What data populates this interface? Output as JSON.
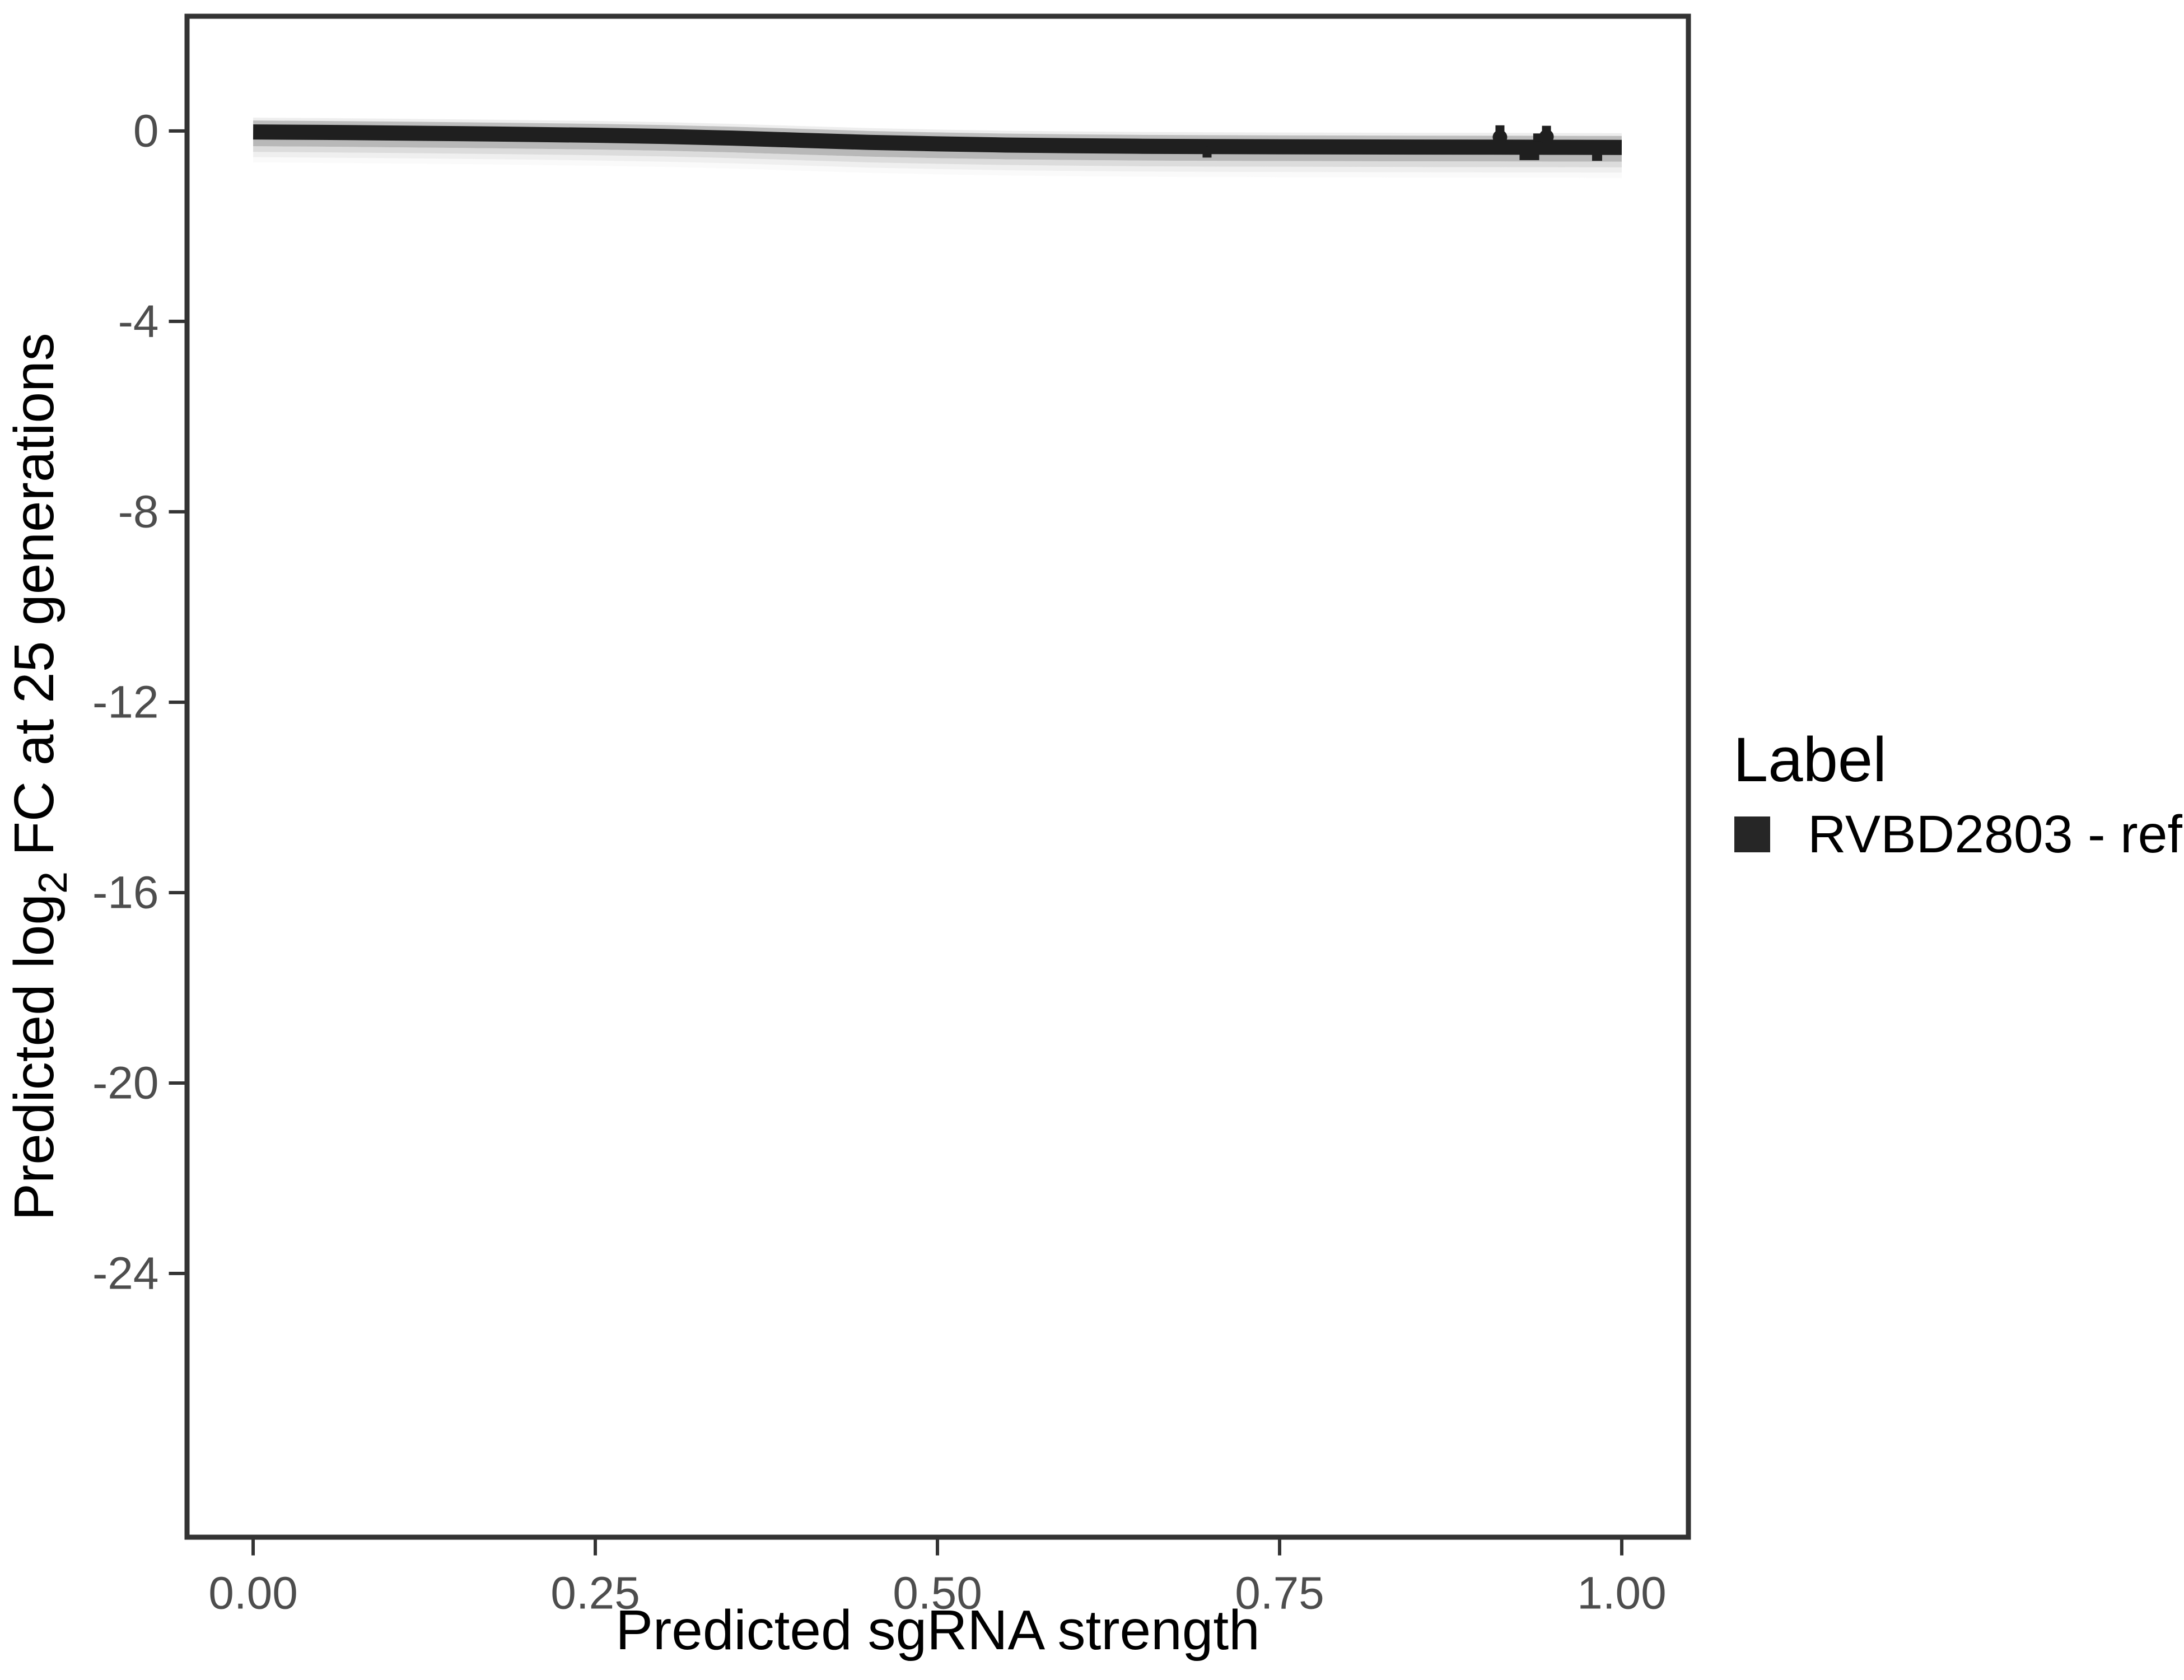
{
  "chart_data": {
    "type": "line",
    "title": "",
    "xlabel": "Predicted sgRNA strength",
    "ylabel": {
      "prefix": "Predicted log",
      "sub": "2",
      "suffix": " FC at 25 generations"
    },
    "x_ticks": [
      {
        "v": 0.0,
        "label": "0.00"
      },
      {
        "v": 0.25,
        "label": "0.25"
      },
      {
        "v": 0.5,
        "label": "0.50"
      },
      {
        "v": 0.75,
        "label": "0.75"
      },
      {
        "v": 1.0,
        "label": "1.00"
      }
    ],
    "y_ticks": [
      {
        "v": 0,
        "label": "0"
      },
      {
        "v": -4,
        "label": "-4"
      },
      {
        "v": -8,
        "label": "-8"
      },
      {
        "v": -12,
        "label": "-12"
      },
      {
        "v": -16,
        "label": "-16"
      },
      {
        "v": -20,
        "label": "-20"
      },
      {
        "v": -24,
        "label": "-24"
      }
    ],
    "axis_ranges": {
      "x": [
        -0.0483,
        1.0487
      ],
      "y": [
        -29.54,
        2.41
      ],
      "grid": "off"
    },
    "legend": {
      "position": "right",
      "title": "Label",
      "entries": [
        {
          "label": "RVBD2803 - ref",
          "key_shape": "square",
          "key_color": "#262626"
        }
      ]
    },
    "series": [
      {
        "name": "RVBD2803 - ref",
        "kind": "smooth_fit_line",
        "color": "#1f1f1f",
        "stroke_px": 27,
        "points": [
          [
            0.0,
            -0.02
          ],
          [
            0.05,
            -0.03
          ],
          [
            0.1,
            -0.042
          ],
          [
            0.15,
            -0.056
          ],
          [
            0.2,
            -0.072
          ],
          [
            0.25,
            -0.09
          ],
          [
            0.3,
            -0.115
          ],
          [
            0.35,
            -0.15
          ],
          [
            0.4,
            -0.195
          ],
          [
            0.45,
            -0.24
          ],
          [
            0.5,
            -0.27
          ],
          [
            0.55,
            -0.295
          ],
          [
            0.6,
            -0.31
          ],
          [
            0.65,
            -0.322
          ],
          [
            0.7,
            -0.328
          ],
          [
            0.75,
            -0.332
          ],
          [
            0.8,
            -0.335
          ],
          [
            0.85,
            -0.338
          ],
          [
            0.9,
            -0.34
          ],
          [
            0.95,
            -0.342
          ],
          [
            1.0,
            -0.345
          ]
        ]
      }
    ],
    "ribbon_bands": [
      {
        "top": 0.3,
        "bottom": 0.24,
        "color": "#d9d9d9",
        "opacity": 0.45
      },
      {
        "top": 0.24,
        "bottom": 0.15,
        "color": "#b3b3b3",
        "opacity": 0.85
      },
      {
        "top": -0.15,
        "bottom": -0.3,
        "color": "#ababab",
        "opacity": 0.85
      },
      {
        "top": -0.3,
        "bottom": -0.42,
        "color": "#c4c4c4",
        "opacity": 0.6
      },
      {
        "top": -0.42,
        "bottom": -0.53,
        "color": "#d9d9d9",
        "opacity": 0.42
      },
      {
        "top": -0.53,
        "bottom": -0.64,
        "color": "#ececec",
        "opacity": 0.27
      }
    ],
    "scatter_points": [
      {
        "x": 0.911,
        "y": -0.13,
        "whisker_top": 0.06
      },
      {
        "x": 0.945,
        "y": -0.12,
        "whisker_top": 0.05
      }
    ],
    "error_caps": [
      {
        "x": 0.939,
        "y": -0.135
      },
      {
        "x": 0.929,
        "y": -0.53
      },
      {
        "x": 0.936,
        "y": -0.53
      },
      {
        "x": 0.982,
        "y": -0.545
      }
    ],
    "error_stems": [
      {
        "x": 0.697,
        "y1": -0.33,
        "y2": -0.5
      }
    ],
    "colors": {
      "background": "#ffffff",
      "panel_border": "#333333",
      "tick_mark": "#333333",
      "tick_label": "#4d4d4d",
      "axis_title": "#000000",
      "legend_title": "#000000",
      "legend_text": "#000000",
      "legend_key": "#262626",
      "line": "#1f1f1f"
    }
  }
}
